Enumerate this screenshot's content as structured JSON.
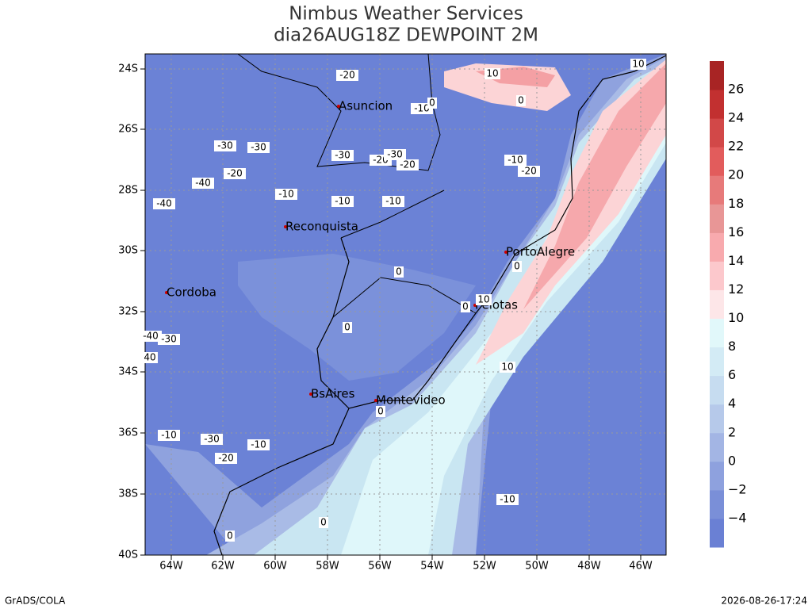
{
  "title": [
    "Nimbus Weather Services",
    "dia26AUG18Z DEWPOINT 2M"
  ],
  "map": {
    "lat_ticks": [
      "24S",
      "26S",
      "28S",
      "30S",
      "32S",
      "34S",
      "36S",
      "38S",
      "40S"
    ],
    "lon_ticks": [
      "64W",
      "62W",
      "60W",
      "58W",
      "56W",
      "54W",
      "52W",
      "50W",
      "48W",
      "46W"
    ],
    "cities": [
      "Asuncion",
      "Reconquista",
      "Cordoba",
      "PortoAlegre",
      "Pelotas",
      "BsAires",
      "Montevideo"
    ],
    "contour_labels": [
      "-20",
      "10",
      "10",
      "-10",
      "0",
      "0",
      "-30",
      "-30",
      "-30",
      "-20",
      "-30",
      "-20",
      "-10",
      "-20",
      "-20",
      "-40",
      "-10",
      "-40",
      "-10",
      "-10",
      "0",
      "0",
      "0",
      "10",
      "0",
      "-40",
      "-30",
      "40",
      "10",
      "0",
      "-10",
      "-30",
      "-10",
      "-20",
      "-10",
      "0",
      "0"
    ]
  },
  "colorbar": {
    "labels": [
      "−4",
      "−2",
      "0",
      "2",
      "4",
      "6",
      "8",
      "10",
      "12",
      "14",
      "16",
      "18",
      "20",
      "22",
      "24",
      "26"
    ],
    "colors": [
      "#6a80d4",
      "#7a8fd8",
      "#8ea1de",
      "#a3b5e4",
      "#b6c9ea",
      "#c6dcf0",
      "#d3ebf5",
      "#e1f8fa",
      "#fde6e8",
      "#fcc8cc",
      "#f8aaae",
      "#e89696",
      "#e77a7a",
      "#e25c5c",
      "#d24848",
      "#c23030",
      "#a82424"
    ]
  },
  "footer": {
    "left": "GrADS/COLA",
    "right": "2026-08-26-17:24"
  }
}
